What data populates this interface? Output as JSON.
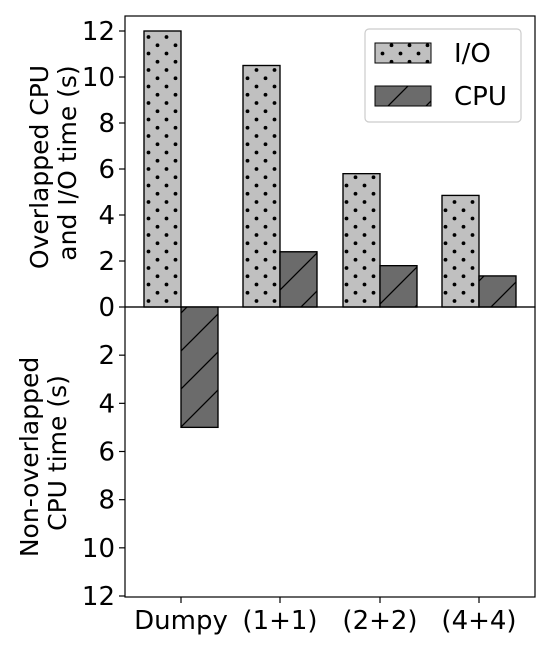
{
  "chart_data": [
    {
      "panel": "top",
      "type": "bar",
      "categories": [
        "Dumpy",
        "(1+1)",
        "(2+2)",
        "(4+4)"
      ],
      "series": [
        {
          "name": "I/O",
          "values": [
            12.0,
            10.5,
            5.8,
            4.85
          ],
          "color": "#c0c0c0",
          "hatch": "dots"
        },
        {
          "name": "CPU",
          "values": [
            0,
            2.4,
            1.8,
            1.35
          ],
          "color": "#6b6b6b",
          "hatch": "slash"
        }
      ],
      "ylabel": [
        "Overlapped CPU",
        "and I/O time (s)"
      ],
      "ylim": [
        0,
        12.5
      ],
      "yticks": [
        "0",
        "2",
        "4",
        "6",
        "8",
        "10",
        "12"
      ],
      "legend": "top-right"
    },
    {
      "panel": "bottom",
      "type": "bar",
      "categories": [
        "Dumpy",
        "(1+1)",
        "(2+2)",
        "(4+4)"
      ],
      "series": [
        {
          "name": "CPU",
          "values": [
            5.0,
            0,
            0,
            0
          ],
          "color": "#6b6b6b",
          "hatch": "slash"
        }
      ],
      "ylabel": [
        "Non-overlapped",
        "CPU time (s)"
      ],
      "ylim": [
        0,
        12
      ],
      "yticks": [
        "2",
        "4",
        "6",
        "8",
        "10",
        "12"
      ],
      "inverted": true
    }
  ]
}
